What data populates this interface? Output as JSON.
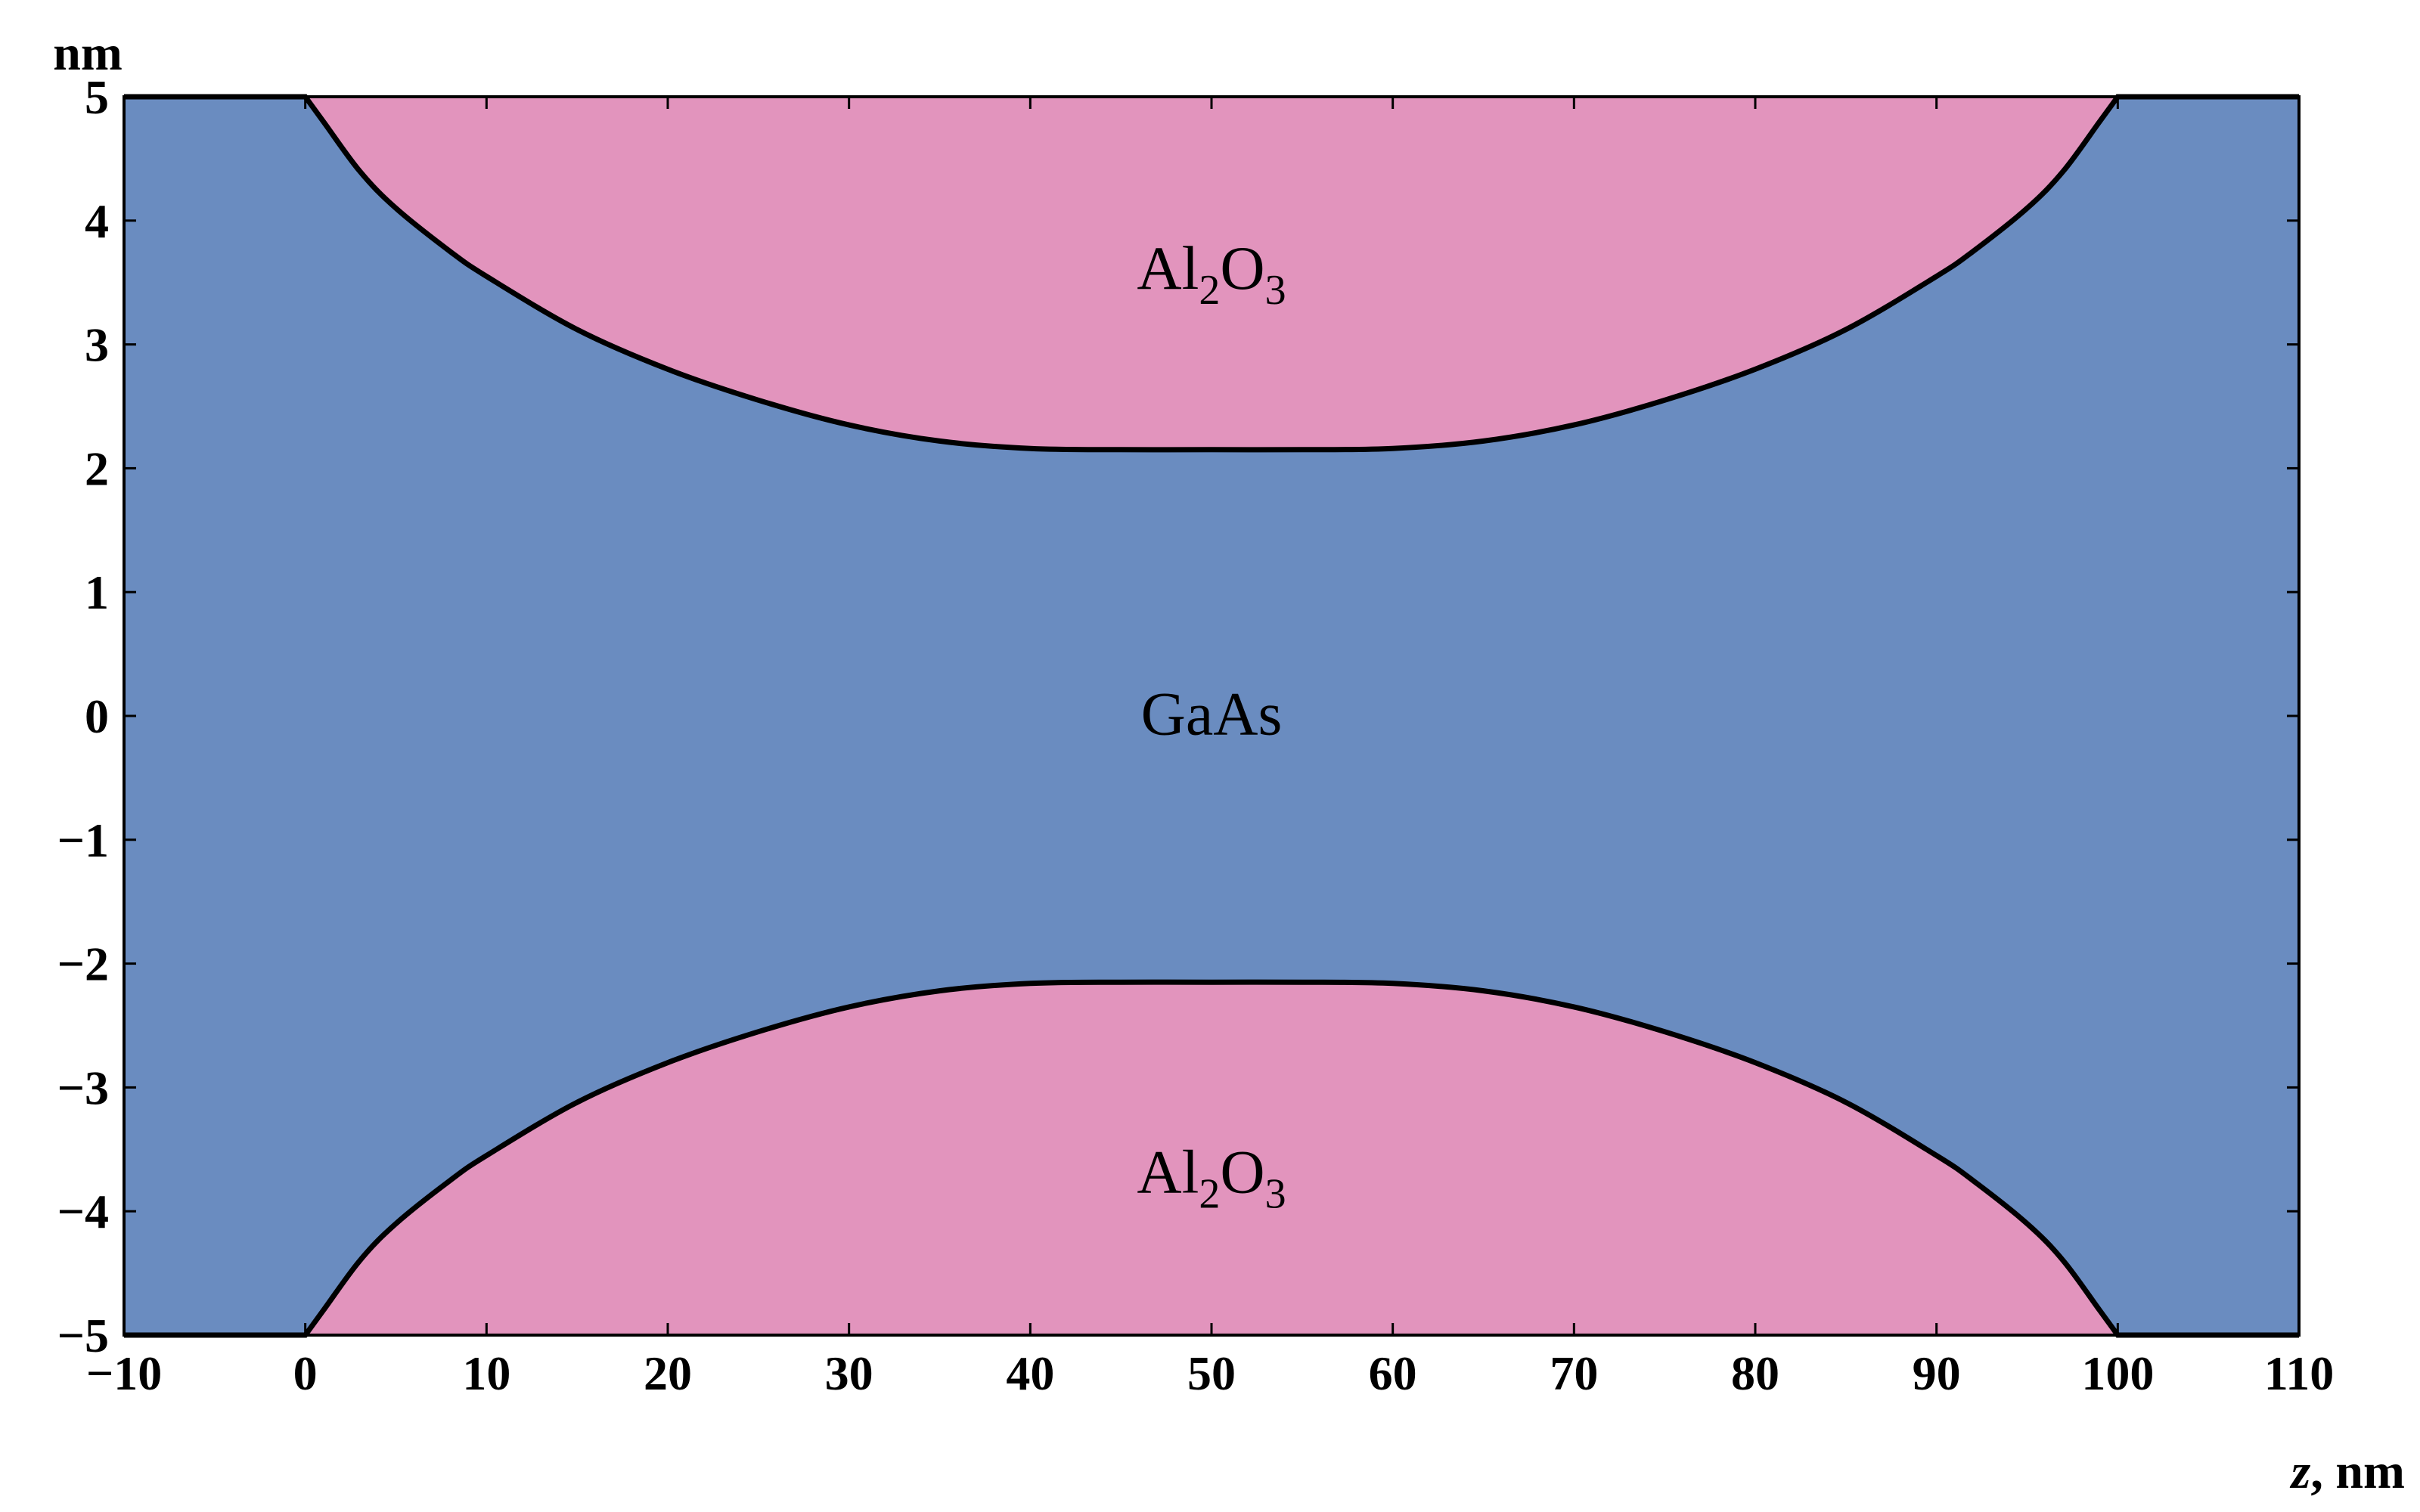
{
  "chart_data": {
    "type": "area",
    "title": "",
    "xlabel": "z, nm",
    "xlabel_italic_part": "z",
    "xlabel_rest": ", nm",
    "ylabel": "nm",
    "xlim": [
      -10,
      110
    ],
    "ylim": [
      -5,
      5
    ],
    "x_ticks": [
      -10,
      0,
      10,
      20,
      30,
      40,
      50,
      60,
      70,
      80,
      90,
      100,
      110
    ],
    "x_tick_labels": [
      "−10",
      "0",
      "10",
      "20",
      "30",
      "40",
      "50",
      "60",
      "70",
      "80",
      "90",
      "100",
      "110"
    ],
    "y_ticks": [
      5,
      4,
      3,
      2,
      1,
      0,
      -1,
      -2,
      -3,
      -4,
      -5
    ],
    "y_tick_labels": [
      "5",
      "4",
      "3",
      "2",
      "1",
      "0",
      "−1",
      "−2",
      "−3",
      "−4",
      "−5"
    ],
    "grid": false,
    "legend": "none",
    "colors": {
      "gaas": "#6a8cc0",
      "al2o3": "#e294bd",
      "boundary": "#000000"
    },
    "regions": {
      "gaas_label": "GaAs",
      "al2o3_label_main": "Al",
      "al2o3_sub1": "2",
      "al2o3_mid": "O",
      "al2o3_sub2": "3"
    },
    "boundary_upper": {
      "x": [
        0,
        1,
        3,
        5,
        8,
        10,
        15,
        20,
        25,
        30,
        35,
        40,
        45,
        50,
        55,
        60,
        65,
        70,
        75,
        80,
        85,
        90,
        92,
        95,
        97,
        99,
        100
      ],
      "y": [
        5.0,
        4.8,
        4.4,
        4.1,
        3.75,
        3.55,
        3.12,
        2.8,
        2.55,
        2.35,
        2.22,
        2.16,
        2.15,
        2.15,
        2.15,
        2.16,
        2.22,
        2.35,
        2.55,
        2.8,
        3.12,
        3.55,
        3.75,
        4.1,
        4.4,
        4.8,
        5.0
      ]
    },
    "boundary_lower": {
      "x": [
        0,
        1,
        3,
        5,
        8,
        10,
        15,
        20,
        25,
        30,
        35,
        40,
        45,
        50,
        55,
        60,
        65,
        70,
        75,
        80,
        85,
        90,
        92,
        95,
        97,
        99,
        100
      ],
      "y": [
        -5.0,
        -4.8,
        -4.4,
        -4.1,
        -3.75,
        -3.55,
        -3.12,
        -2.8,
        -2.55,
        -2.35,
        -2.22,
        -2.16,
        -2.15,
        -2.15,
        -2.15,
        -2.16,
        -2.22,
        -2.35,
        -2.55,
        -2.8,
        -3.12,
        -3.55,
        -3.75,
        -4.1,
        -4.4,
        -4.8,
        -5.0
      ]
    }
  }
}
